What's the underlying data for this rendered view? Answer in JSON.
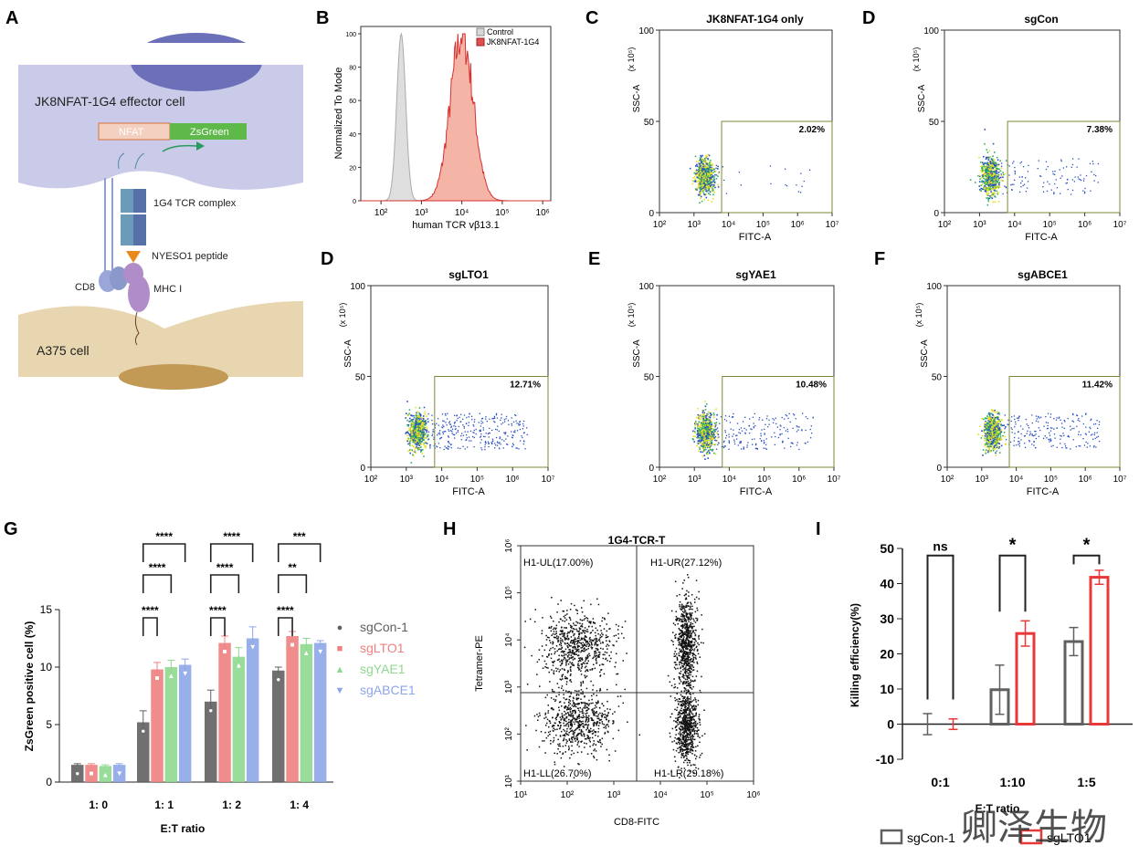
{
  "panels": {
    "A": "A",
    "B": "B",
    "C": "C",
    "D1": "D",
    "D2": "D",
    "E": "E",
    "F": "F",
    "G": "G",
    "H": "H",
    "I": "I"
  },
  "diagram": {
    "effector_cell": "JK8NFAT-1G4 effector cell",
    "nfat": "NFAT",
    "zsgreen": "ZsGreen",
    "tcr_complex": "1G4 TCR complex",
    "peptide": "NYESO1 peptide",
    "cd8": "CD8",
    "mhc": "MHC I",
    "target_cell": "A375 cell",
    "colors": {
      "effector": "#c9cbe8",
      "nucleus": "#6b70b8",
      "target": "#e8d6b0",
      "target_nucleus": "#c39a55",
      "tcr": "#5b86a8",
      "mhc": "#b08cc8",
      "peptide": "#e8891a",
      "nfat": "#d9703a",
      "zsgreen": "#5fb84a"
    }
  },
  "watermark": "卿泽生物",
  "chart_data": [
    {
      "id": "B",
      "type": "histogram",
      "xlabel": "human TCR vβ13.1",
      "ylabel": "Normalized To Mode",
      "xscale": "log",
      "xlim_exp": [
        1.5,
        6.2
      ],
      "xticks": [
        "10²",
        "10³",
        "10⁴",
        "10⁵",
        "10⁶"
      ],
      "yticks": [
        "0",
        "20",
        "40",
        "60",
        "80",
        "100"
      ],
      "ylim": [
        0,
        100
      ],
      "series": [
        {
          "name": "Control",
          "color": "#d8d8d8",
          "edge": "#aaaaaa",
          "peak_log10": 2.5,
          "sigma": 0.11
        },
        {
          "name": "JK8NFAT-1G4",
          "color": "#f2a898",
          "edge": "#d63030",
          "peak_log10": 4.0,
          "sigma": 0.28
        }
      ]
    },
    {
      "id": "C",
      "type": "scatter",
      "title": "JK8NFAT-1G4 only",
      "gate_pct": "2.02%",
      "gate_x_log": 3.8,
      "tail_count": 20,
      "xlabel": "FITC-A",
      "ylabel": "SSC-A",
      "yunit": "(x 10⁵)",
      "yticks": [
        "0",
        "50",
        "100"
      ],
      "xticks": [
        "10²",
        "10³",
        "10⁴",
        "10⁵",
        "10⁶",
        "10⁷"
      ]
    },
    {
      "id": "D1",
      "type": "scatter",
      "title": "sgCon",
      "gate_pct": "7.38%",
      "gate_x_log": 3.8,
      "tail_count": 110,
      "xlabel": "FITC-A",
      "ylabel": "SSC-A",
      "yunit": "(x 10⁵)",
      "yticks": [
        "0",
        "50",
        "100"
      ],
      "xticks": [
        "10²",
        "10³",
        "10⁴",
        "10⁵",
        "10⁶",
        "10⁷"
      ]
    },
    {
      "id": "D2",
      "type": "scatter",
      "title": "sgLTO1",
      "gate_pct": "12.71%",
      "gate_x_log": 3.8,
      "tail_count": 300,
      "xlabel": "FITC-A",
      "ylabel": "SSC-A",
      "yunit": "(x 10⁵)",
      "yticks": [
        "0",
        "50",
        "100"
      ],
      "xticks": [
        "10²",
        "10³",
        "10⁴",
        "10⁵",
        "10⁶",
        "10⁷"
      ]
    },
    {
      "id": "E",
      "type": "scatter",
      "title": "sgYAE1",
      "gate_pct": "10.48%",
      "gate_x_log": 3.8,
      "tail_count": 180,
      "xlabel": "FITC-A",
      "ylabel": "SSC-A",
      "yunit": "(x 10⁵)",
      "yticks": [
        "0",
        "50",
        "100"
      ],
      "xticks": [
        "10²",
        "10³",
        "10⁴",
        "10⁵",
        "10⁶",
        "10⁷"
      ]
    },
    {
      "id": "F",
      "type": "scatter",
      "title": "sgABCE1",
      "gate_pct": "11.42%",
      "gate_x_log": 3.8,
      "tail_count": 200,
      "xlabel": "FITC-A",
      "ylabel": "SSC-A",
      "yunit": "(x 10⁵)",
      "yticks": [
        "0",
        "50",
        "100"
      ],
      "xticks": [
        "10²",
        "10³",
        "10⁴",
        "10⁵",
        "10⁶",
        "10⁷"
      ]
    },
    {
      "id": "G",
      "type": "bar",
      "xlabel": "E:T ratio",
      "ylabel": "ZsGreen positive cell (%)",
      "categories": [
        "1: 0",
        "1: 1",
        "1: 2",
        "1: 4"
      ],
      "ylim": [
        0,
        15
      ],
      "yticks": [
        "0",
        "5",
        "10",
        "15"
      ],
      "series": [
        {
          "name": "sgCon-1",
          "color": "#606060",
          "marker": "●",
          "values": [
            1.5,
            5.2,
            7.0,
            9.7
          ],
          "errors": [
            0.1,
            1.0,
            1.0,
            0.3
          ]
        },
        {
          "name": "sgLTO1",
          "color": "#f08080",
          "marker": "■",
          "values": [
            1.5,
            9.8,
            12.1,
            12.7
          ],
          "errors": [
            0.1,
            0.6,
            0.6,
            0.4
          ]
        },
        {
          "name": "sgYAE1",
          "color": "#8fd88f",
          "marker": "▲",
          "values": [
            1.4,
            10.0,
            10.9,
            12.0
          ],
          "errors": [
            0.1,
            0.6,
            0.8,
            0.5
          ]
        },
        {
          "name": "sgABCE1",
          "color": "#8ea6e8",
          "marker": "▼",
          "values": [
            1.5,
            10.2,
            12.5,
            12.1
          ],
          "errors": [
            0.1,
            0.5,
            1.0,
            0.2
          ]
        }
      ],
      "significance": [
        {
          "group": 1,
          "to": 1,
          "label": "****"
        },
        {
          "group": 1,
          "to": 2,
          "label": "****"
        },
        {
          "group": 1,
          "to": 3,
          "label": "****"
        },
        {
          "group": 2,
          "to": 1,
          "label": "****"
        },
        {
          "group": 2,
          "to": 2,
          "label": "****"
        },
        {
          "group": 2,
          "to": 3,
          "label": "****"
        },
        {
          "group": 3,
          "to": 1,
          "label": "****"
        },
        {
          "group": 3,
          "to": 2,
          "label": "**"
        },
        {
          "group": 3,
          "to": 3,
          "label": "***"
        }
      ]
    },
    {
      "id": "H",
      "type": "scatter",
      "title": "1G4-TCR-T",
      "xlabel": "CD8-FITC",
      "ylabel": "Tetramer-PE",
      "xticks": [
        "10¹",
        "10²",
        "10³",
        "10⁴",
        "10⁵",
        "10⁶"
      ],
      "yticks": [
        "10¹",
        "10²",
        "10³",
        "10⁴",
        "10⁵",
        "10⁶"
      ],
      "quadrants": {
        "UL": "H1-UL(17.00%)",
        "UR": "H1-UR(27.12%)",
        "LL": "H1-LL(26.70%)",
        "LR": "H1-LR(29.18%)"
      }
    },
    {
      "id": "I",
      "type": "bar",
      "xlabel": "E:T ratio",
      "ylabel": "Killing efficiency(%)",
      "categories": [
        "0:1",
        "1:10",
        "1:5"
      ],
      "ylim": [
        -10,
        50
      ],
      "yticks": [
        "-10",
        "0",
        "10",
        "20",
        "30",
        "40",
        "50"
      ],
      "series": [
        {
          "name": "sgCon-1",
          "color": "#606060",
          "values": [
            0,
            9.8,
            23.5
          ],
          "errors": [
            3.0,
            7.0,
            4.0
          ]
        },
        {
          "name": "sgLTO1",
          "color": "#e83838",
          "values": [
            0,
            25.8,
            41.8
          ],
          "errors": [
            1.5,
            3.6,
            2.0
          ]
        }
      ],
      "significance": [
        "ns",
        "*",
        "*"
      ]
    }
  ]
}
